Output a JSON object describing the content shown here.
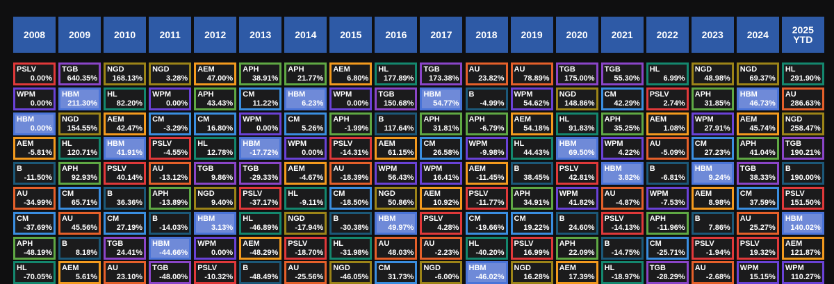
{
  "table": {
    "headers": [
      "2008",
      "2009",
      "2010",
      "2011",
      "2012",
      "2013",
      "2014",
      "2015",
      "2016",
      "2017",
      "2018",
      "2019",
      "2020",
      "2021",
      "2022",
      "2023",
      "2024",
      "2025 YTD"
    ],
    "columns": [
      [
        {
          "ticker": "PSLV",
          "value": "0.00%"
        },
        {
          "ticker": "WPM",
          "value": "0.00%"
        },
        {
          "ticker": "HBM",
          "value": "0.00%"
        },
        {
          "ticker": "AEM",
          "value": "-5.81%"
        },
        {
          "ticker": "B",
          "value": "-11.50%"
        },
        {
          "ticker": "AU",
          "value": "-34.99%"
        },
        {
          "ticker": "CM",
          "value": "-37.69%"
        },
        {
          "ticker": "APH",
          "value": "-48.19%"
        },
        {
          "ticker": "HL",
          "value": "-70.05%"
        }
      ],
      [
        {
          "ticker": "TGB",
          "value": "640.35%"
        },
        {
          "ticker": "HBM",
          "value": "211.30%"
        },
        {
          "ticker": "NGD",
          "value": "154.55%"
        },
        {
          "ticker": "HL",
          "value": "120.71%"
        },
        {
          "ticker": "APH",
          "value": "92.93%"
        },
        {
          "ticker": "CM",
          "value": "65.71%"
        },
        {
          "ticker": "AU",
          "value": "45.56%"
        },
        {
          "ticker": "B",
          "value": "8.18%"
        },
        {
          "ticker": "AEM",
          "value": "5.61%"
        }
      ],
      [
        {
          "ticker": "NGD",
          "value": "168.13%"
        },
        {
          "ticker": "HL",
          "value": "82.20%"
        },
        {
          "ticker": "AEM",
          "value": "42.47%"
        },
        {
          "ticker": "HBM",
          "value": "41.91%"
        },
        {
          "ticker": "PSLV",
          "value": "40.14%"
        },
        {
          "ticker": "B",
          "value": "36.36%"
        },
        {
          "ticker": "CM",
          "value": "27.19%"
        },
        {
          "ticker": "TGB",
          "value": "24.41%"
        },
        {
          "ticker": "AU",
          "value": "23.10%"
        }
      ],
      [
        {
          "ticker": "NGD",
          "value": "3.28%"
        },
        {
          "ticker": "WPM",
          "value": "0.00%"
        },
        {
          "ticker": "CM",
          "value": "-3.29%"
        },
        {
          "ticker": "PSLV",
          "value": "-4.55%"
        },
        {
          "ticker": "AU",
          "value": "-13.12%"
        },
        {
          "ticker": "APH",
          "value": "-13.89%"
        },
        {
          "ticker": "B",
          "value": "-14.03%"
        },
        {
          "ticker": "HBM",
          "value": "-44.66%"
        },
        {
          "ticker": "TGB",
          "value": "-48.00%"
        }
      ],
      [
        {
          "ticker": "AEM",
          "value": "47.00%"
        },
        {
          "ticker": "APH",
          "value": "43.43%"
        },
        {
          "ticker": "CM",
          "value": "16.80%"
        },
        {
          "ticker": "HL",
          "value": "12.78%"
        },
        {
          "ticker": "TGB",
          "value": "9.86%"
        },
        {
          "ticker": "NGD",
          "value": "9.40%"
        },
        {
          "ticker": "HBM",
          "value": "3.13%"
        },
        {
          "ticker": "WPM",
          "value": "0.00%"
        },
        {
          "ticker": "PSLV",
          "value": "-10.32%"
        }
      ],
      [
        {
          "ticker": "APH",
          "value": "38.91%"
        },
        {
          "ticker": "CM",
          "value": "11.22%"
        },
        {
          "ticker": "WPM",
          "value": "0.00%"
        },
        {
          "ticker": "HBM",
          "value": "-17.72%"
        },
        {
          "ticker": "TGB",
          "value": "-29.33%"
        },
        {
          "ticker": "PSLV",
          "value": "-37.17%"
        },
        {
          "ticker": "HL",
          "value": "-46.89%"
        },
        {
          "ticker": "AEM",
          "value": "-48.29%"
        },
        {
          "ticker": "B",
          "value": "-48.49%"
        }
      ],
      [
        {
          "ticker": "APH",
          "value": "21.77%"
        },
        {
          "ticker": "HBM",
          "value": "6.23%"
        },
        {
          "ticker": "CM",
          "value": "5.26%"
        },
        {
          "ticker": "WPM",
          "value": "0.00%"
        },
        {
          "ticker": "AEM",
          "value": "-4.67%"
        },
        {
          "ticker": "HL",
          "value": "-9.11%"
        },
        {
          "ticker": "NGD",
          "value": "-17.94%"
        },
        {
          "ticker": "PSLV",
          "value": "-18.70%"
        },
        {
          "ticker": "AU",
          "value": "-25.56%"
        }
      ],
      [
        {
          "ticker": "AEM",
          "value": "6.80%"
        },
        {
          "ticker": "WPM",
          "value": "0.00%"
        },
        {
          "ticker": "APH",
          "value": "-1.99%"
        },
        {
          "ticker": "PSLV",
          "value": "-14.31%"
        },
        {
          "ticker": "AU",
          "value": "-18.39%"
        },
        {
          "ticker": "CM",
          "value": "-18.50%"
        },
        {
          "ticker": "B",
          "value": "-30.38%"
        },
        {
          "ticker": "HL",
          "value": "-31.98%"
        },
        {
          "ticker": "NGD",
          "value": "-46.05%"
        }
      ],
      [
        {
          "ticker": "HL",
          "value": "177.89%"
        },
        {
          "ticker": "TGB",
          "value": "150.68%"
        },
        {
          "ticker": "B",
          "value": "117.64%"
        },
        {
          "ticker": "AEM",
          "value": "61.15%"
        },
        {
          "ticker": "WPM",
          "value": "56.43%"
        },
        {
          "ticker": "NGD",
          "value": "50.86%"
        },
        {
          "ticker": "HBM",
          "value": "49.97%"
        },
        {
          "ticker": "AU",
          "value": "48.03%"
        },
        {
          "ticker": "CM",
          "value": "31.73%"
        }
      ],
      [
        {
          "ticker": "TGB",
          "value": "173.38%"
        },
        {
          "ticker": "HBM",
          "value": "54.77%"
        },
        {
          "ticker": "APH",
          "value": "31.81%"
        },
        {
          "ticker": "CM",
          "value": "26.58%"
        },
        {
          "ticker": "WPM",
          "value": "16.41%"
        },
        {
          "ticker": "AEM",
          "value": "10.92%"
        },
        {
          "ticker": "PSLV",
          "value": "4.28%"
        },
        {
          "ticker": "AU",
          "value": "-2.23%"
        },
        {
          "ticker": "NGD",
          "value": "-6.00%"
        }
      ],
      [
        {
          "ticker": "AU",
          "value": "23.82%"
        },
        {
          "ticker": "B",
          "value": "-4.99%"
        },
        {
          "ticker": "APH",
          "value": "-6.79%"
        },
        {
          "ticker": "WPM",
          "value": "-9.98%"
        },
        {
          "ticker": "AEM",
          "value": "-11.45%"
        },
        {
          "ticker": "PSLV",
          "value": "-11.77%"
        },
        {
          "ticker": "CM",
          "value": "-19.66%"
        },
        {
          "ticker": "HL",
          "value": "-40.20%"
        },
        {
          "ticker": "HBM",
          "value": "-46.02%"
        }
      ],
      [
        {
          "ticker": "AU",
          "value": "78.89%"
        },
        {
          "ticker": "WPM",
          "value": "54.62%"
        },
        {
          "ticker": "AEM",
          "value": "54.18%"
        },
        {
          "ticker": "HL",
          "value": "44.43%"
        },
        {
          "ticker": "B",
          "value": "38.45%"
        },
        {
          "ticker": "APH",
          "value": "34.91%"
        },
        {
          "ticker": "CM",
          "value": "19.22%"
        },
        {
          "ticker": "PSLV",
          "value": "16.99%"
        },
        {
          "ticker": "NGD",
          "value": "16.28%"
        }
      ],
      [
        {
          "ticker": "TGB",
          "value": "175.00%"
        },
        {
          "ticker": "NGD",
          "value": "148.86%"
        },
        {
          "ticker": "HL",
          "value": "91.83%"
        },
        {
          "ticker": "HBM",
          "value": "69.50%"
        },
        {
          "ticker": "PSLV",
          "value": "42.81%"
        },
        {
          "ticker": "WPM",
          "value": "41.82%"
        },
        {
          "ticker": "B",
          "value": "24.60%"
        },
        {
          "ticker": "APH",
          "value": "22.09%"
        },
        {
          "ticker": "AEM",
          "value": "17.39%"
        }
      ],
      [
        {
          "ticker": "TGB",
          "value": "55.30%"
        },
        {
          "ticker": "CM",
          "value": "42.29%"
        },
        {
          "ticker": "APH",
          "value": "35.25%"
        },
        {
          "ticker": "WPM",
          "value": "4.22%"
        },
        {
          "ticker": "HBM",
          "value": "3.82%"
        },
        {
          "ticker": "AU",
          "value": "-4.87%"
        },
        {
          "ticker": "PSLV",
          "value": "-14.13%"
        },
        {
          "ticker": "B",
          "value": "-14.75%"
        },
        {
          "ticker": "HL",
          "value": "-18.97%"
        }
      ],
      [
        {
          "ticker": "HL",
          "value": "6.99%"
        },
        {
          "ticker": "PSLV",
          "value": "2.74%"
        },
        {
          "ticker": "AEM",
          "value": "1.08%"
        },
        {
          "ticker": "AU",
          "value": "-5.09%"
        },
        {
          "ticker": "B",
          "value": "-6.81%"
        },
        {
          "ticker": "WPM",
          "value": "-7.53%"
        },
        {
          "ticker": "APH",
          "value": "-11.96%"
        },
        {
          "ticker": "CM",
          "value": "-25.71%"
        },
        {
          "ticker": "TGB",
          "value": "-28.29%"
        }
      ],
      [
        {
          "ticker": "NGD",
          "value": "48.98%"
        },
        {
          "ticker": "APH",
          "value": "31.85%"
        },
        {
          "ticker": "WPM",
          "value": "27.91%"
        },
        {
          "ticker": "CM",
          "value": "27.23%"
        },
        {
          "ticker": "HBM",
          "value": "9.24%"
        },
        {
          "ticker": "AEM",
          "value": "8.98%"
        },
        {
          "ticker": "B",
          "value": "7.86%"
        },
        {
          "ticker": "PSLV",
          "value": "-1.94%"
        },
        {
          "ticker": "AU",
          "value": "-2.68%"
        }
      ],
      [
        {
          "ticker": "NGD",
          "value": "69.37%"
        },
        {
          "ticker": "HBM",
          "value": "46.73%"
        },
        {
          "ticker": "AEM",
          "value": "45.74%"
        },
        {
          "ticker": "APH",
          "value": "41.04%"
        },
        {
          "ticker": "TGB",
          "value": "38.33%"
        },
        {
          "ticker": "CM",
          "value": "37.59%"
        },
        {
          "ticker": "AU",
          "value": "25.27%"
        },
        {
          "ticker": "PSLV",
          "value": "19.32%"
        },
        {
          "ticker": "WPM",
          "value": "15.15%"
        }
      ],
      [
        {
          "ticker": "HL",
          "value": "291.90%"
        },
        {
          "ticker": "AU",
          "value": "286.63%"
        },
        {
          "ticker": "NGD",
          "value": "258.47%"
        },
        {
          "ticker": "TGB",
          "value": "190.21%"
        },
        {
          "ticker": "B",
          "value": "190.00%"
        },
        {
          "ticker": "PSLV",
          "value": "151.50%"
        },
        {
          "ticker": "HBM",
          "value": "140.02%"
        },
        {
          "ticker": "AEM",
          "value": "121.87%"
        },
        {
          "ticker": "WPM",
          "value": "110.27%"
        }
      ]
    ],
    "ticker_colors": {
      "PSLV": "#e0393a",
      "TGB": "#8a45c8",
      "NGD": "#9c8418",
      "AEM": "#f39a1e",
      "APH": "#5fa844",
      "HL": "#14876e",
      "HBM": "#6f8ad8",
      "WPM": "#6a42d6",
      "CM": "#3a8ee0",
      "B": "#1c5878",
      "AU": "#e5602a"
    },
    "filled_tickers": [
      "HBM"
    ]
  }
}
